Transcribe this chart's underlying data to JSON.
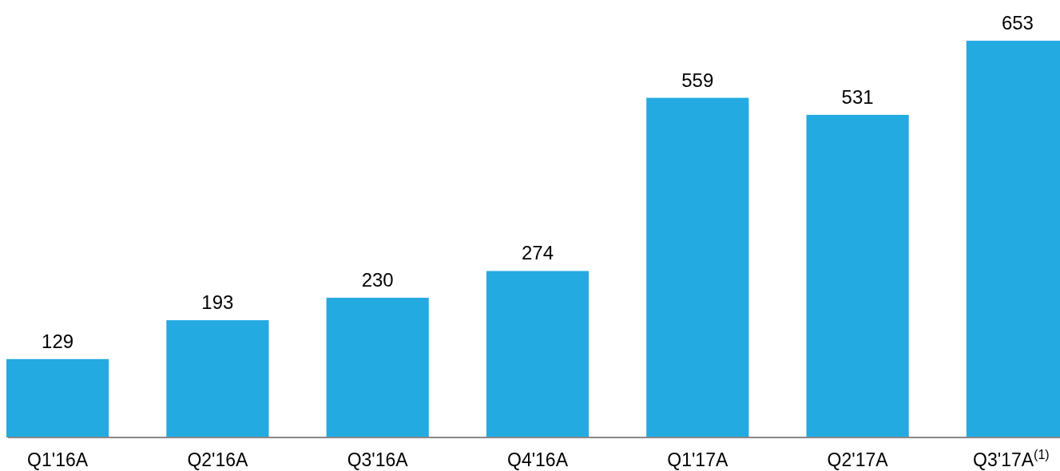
{
  "chart_data": {
    "type": "bar",
    "categories": [
      "Q1'16A",
      "Q2'16A",
      "Q3'16A",
      "Q4'16A",
      "Q1'17A",
      "Q2'17A",
      "Q3'17A$^{(1)}$"
    ],
    "values": [
      129,
      193,
      230,
      274,
      559,
      531,
      653
    ],
    "color": "#23aae1",
    "data_labels": true,
    "tick_labels": "x"
  }
}
